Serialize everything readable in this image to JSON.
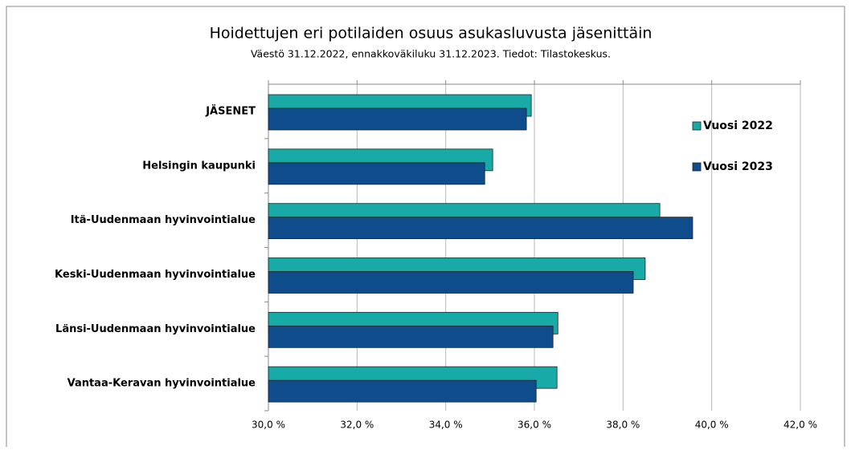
{
  "chart_data": {
    "type": "barh",
    "title": "Hoidettujen eri potilaiden osuus asukasluvusta jäsenittäin",
    "subtitle": "Väestö 31.12.2022, ennakkoväkiluku 31.12.2023. Tiedot: Tilastokeskus.",
    "categories": [
      "JÄSENET",
      "Helsingin kaupunki",
      "Itä-Uudenmaan hyvinvointialue",
      "Keski-Uudenmaan hyvinvointialue",
      "Länsi-Uudenmaan hyvinvointialue",
      "Vantaa-Keravan hyvinvointialue"
    ],
    "series": [
      {
        "name": "Vuosi 2022",
        "color": "#17aaa6",
        "values": [
          35.93,
          35.06,
          38.83,
          38.5,
          36.53,
          36.51
        ]
      },
      {
        "name": "Vuosi 2023",
        "color": "#0f4c8c",
        "values": [
          35.82,
          34.88,
          39.57,
          38.23,
          36.42,
          36.04
        ]
      }
    ],
    "xlim": [
      30,
      42
    ],
    "xticks": [
      {
        "value": 30,
        "label": "30,0 %"
      },
      {
        "value": 32,
        "label": "32,0 %"
      },
      {
        "value": 34,
        "label": "34,0 %"
      },
      {
        "value": 36,
        "label": "36,0 %"
      },
      {
        "value": 38,
        "label": "38,0 %"
      },
      {
        "value": 40,
        "label": "40,0 %"
      },
      {
        "value": 42,
        "label": "42,0 %"
      }
    ],
    "grid": true,
    "legend": "right"
  }
}
